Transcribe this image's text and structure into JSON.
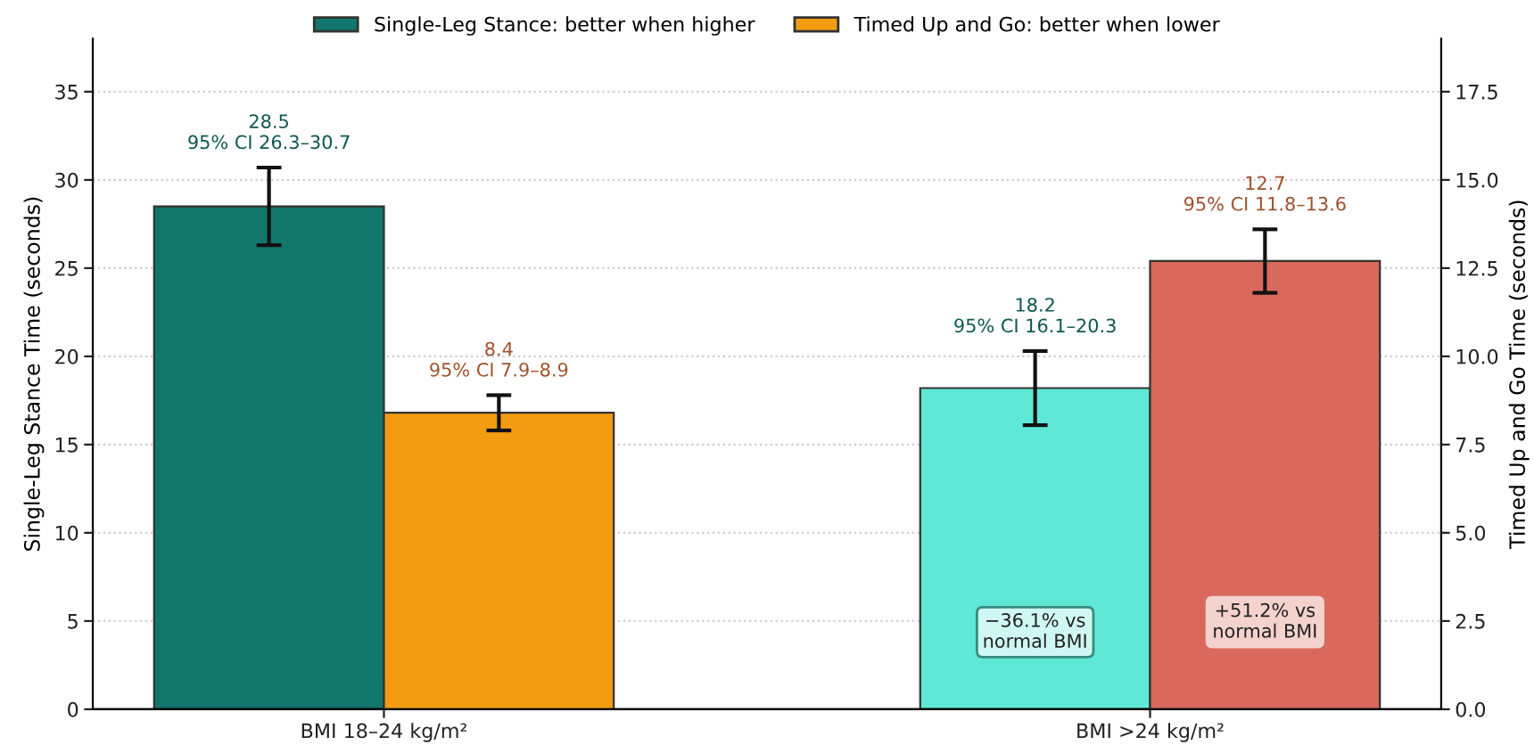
{
  "chart_data": {
    "type": "bar",
    "categories": [
      "BMI 18–24 kg/m²",
      "BMI >24 kg/m²"
    ],
    "ylabel": "Single-Leg Stance Time (seconds)",
    "y2label": "Timed Up and Go Time (seconds)",
    "ylim": [
      0,
      38
    ],
    "yticks": [
      0,
      5,
      10,
      15,
      20,
      25,
      30,
      35
    ],
    "y2lim": [
      0,
      19
    ],
    "y2ticks": [
      {
        "value": 0,
        "label": "0.0"
      },
      2.5,
      {
        "value": 5,
        "label": "5.0"
      },
      7.5,
      {
        "value": 10,
        "label": "10.0"
      },
      12.5,
      {
        "value": 15,
        "label": "15.0"
      },
      17.5
    ],
    "series": [
      {
        "name": "Single-Leg Stance: better when higher",
        "color": "#11766b",
        "colors": [
          "#11766b",
          "#5fe8d6"
        ],
        "values": [
          28.5,
          18.2
        ],
        "errors": [
          [
            26.3,
            30.7
          ],
          [
            16.1,
            20.3
          ]
        ],
        "value_labels": [
          "28.5\n95% CI 26.3–30.7",
          "18.2\n95% CI 16.1–20.3"
        ]
      },
      {
        "name": "Timed Up and Go: better when lower",
        "color": "#f39c12",
        "colors": [
          "#f39c12",
          "#d9695c"
        ],
        "values": [
          8.4,
          12.7
        ],
        "errors": [
          [
            7.9,
            8.9
          ],
          [
            11.8,
            13.6
          ]
        ],
        "value_labels": [
          "8.4\n95% CI 7.9–8.9",
          "12.7\n95% CI 11.8–13.6"
        ],
        "axis": "y2"
      }
    ],
    "annotations": [
      "−36.1% vs\nnormal BMI",
      "+51.2% vs\nnormal BMI"
    ],
    "grid": "y",
    "legend": "top"
  }
}
